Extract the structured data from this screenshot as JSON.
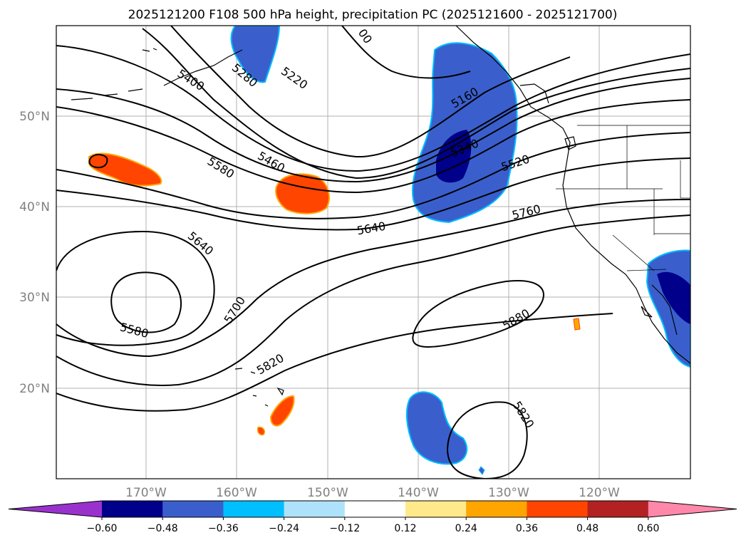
{
  "title": "2025121200 F108 500 hPa height, precipitation PC (2025121600 - 2025121700)",
  "map": {
    "lat_ticks": [
      "50°N",
      "40°N",
      "30°N",
      "20°N"
    ],
    "lon_ticks": [
      "170°W",
      "160°W",
      "150°W",
      "140°W",
      "130°W",
      "120°W"
    ],
    "grid": true,
    "contour_labels": [
      "5400",
      "5280",
      "5220",
      "5160",
      "5340",
      "5520",
      "5460",
      "5580",
      "5640",
      "5760",
      "5640",
      "5700",
      "5580",
      "5880",
      "5820",
      "5820",
      "00"
    ]
  },
  "colorbar": {
    "ticks": [
      "−0.60",
      "−0.48",
      "−0.36",
      "−0.24",
      "−0.12",
      "0.12",
      "0.24",
      "0.36",
      "0.48",
      "0.60"
    ],
    "colors": [
      "#9932cc",
      "#00008b",
      "#3a5fcd",
      "#00bfff",
      "#aee2fa",
      "#ffffff",
      "#ffe98b",
      "#ffa500",
      "#ff4500",
      "#b22222",
      "#ff88aa"
    ]
  }
}
